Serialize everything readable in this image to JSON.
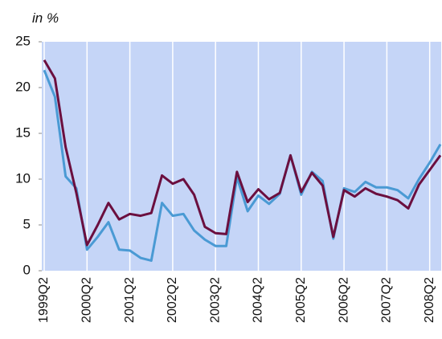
{
  "chart_data": {
    "type": "line",
    "y_label": "in %",
    "categories": [
      "1999Q2",
      null,
      null,
      null,
      "2000Q2",
      null,
      null,
      null,
      "2001Q2",
      null,
      null,
      null,
      "2002Q2",
      null,
      null,
      null,
      "2003Q2",
      null,
      null,
      null,
      "2004Q2",
      null,
      null,
      null,
      "2005Q2",
      null,
      null,
      null,
      "2006Q2",
      null,
      null,
      null,
      "2007Q2",
      null,
      null,
      null,
      "2008Q2",
      null
    ],
    "series": [
      {
        "color": "#4a9ad4",
        "values": [
          21.9,
          19,
          10.3,
          9,
          2.3,
          3.7,
          5.3,
          2.3,
          2.2,
          1.4,
          1.1,
          7.4,
          6,
          6.2,
          4.4,
          3.4,
          2.7,
          2.7,
          10.2,
          6.5,
          8.2,
          7.3,
          8.4,
          12.6,
          8.3,
          10.8,
          9.8,
          3.5,
          9,
          8.6,
          9.7,
          9.1,
          9.1,
          8.8,
          7.9,
          10,
          11.8,
          13.8
        ]
      },
      {
        "color": "#6b0f3f",
        "values": [
          23,
          21,
          13.5,
          8.5,
          2.8,
          5,
          7.4,
          5.6,
          6.2,
          6,
          6.3,
          10.4,
          9.5,
          10,
          8.3,
          4.8,
          4.1,
          4,
          10.8,
          7.5,
          8.9,
          7.8,
          8.5,
          12.6,
          8.6,
          10.7,
          9.3,
          3.7,
          8.8,
          8.1,
          9,
          8.4,
          8.1,
          7.7,
          6.8,
          9.4,
          11,
          12.6
        ]
      }
    ],
    "ylim": [
      0,
      25
    ],
    "yticks": [
      0,
      5,
      10,
      15,
      20,
      25
    ],
    "grid": "x",
    "plot_background": "#c5d5f7"
  }
}
